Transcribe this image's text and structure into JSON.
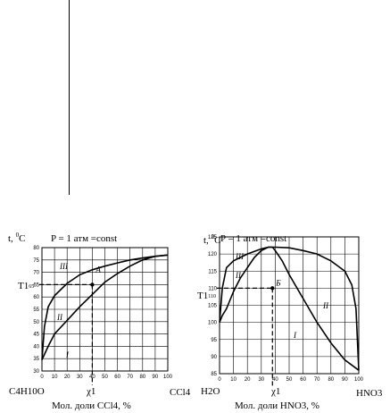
{
  "chart_data": [
    {
      "type": "line",
      "t_label": "t,",
      "t_unit": "C",
      "t_sup": "0",
      "pressure": "P = 1 атм =const",
      "xlim": [
        0,
        100
      ],
      "ylim": [
        30,
        80
      ],
      "xticks": [
        0,
        10,
        20,
        30,
        40,
        50,
        60,
        70,
        80,
        90,
        100
      ],
      "yticks": [
        30,
        35,
        40,
        45,
        50,
        55,
        60,
        65,
        70,
        75,
        80
      ],
      "left_component": "C4H10O",
      "right_component": "CCl4",
      "chi": "χ1",
      "axis_caption": "Мол. доли CCl4, %",
      "T_label": "T1",
      "T_value": "65",
      "point_label": "A",
      "point": [
        40,
        65
      ],
      "series": [
        {
          "curve": "liquid",
          "x": [
            0,
            5,
            10,
            20,
            30,
            40,
            50,
            60,
            70,
            80,
            90,
            100
          ],
          "y": [
            34.5,
            40,
            45,
            50.5,
            56,
            61,
            66,
            69.5,
            72.5,
            75,
            76.5,
            77
          ]
        },
        {
          "curve": "vapor",
          "x": [
            0,
            2,
            5,
            10,
            20,
            30,
            40,
            50,
            60,
            70,
            80,
            90,
            100
          ],
          "y": [
            34.5,
            48,
            56,
            60.5,
            65.5,
            69,
            71,
            72.5,
            73.8,
            75,
            75.8,
            76.5,
            77
          ]
        }
      ],
      "regions": [
        "III",
        "II",
        "I"
      ]
    },
    {
      "type": "line",
      "t_label": "t,",
      "t_unit": "C",
      "t_sup": "0",
      "pressure": "P = 1 атм =const",
      "xlim": [
        0,
        100
      ],
      "ylim": [
        85,
        125
      ],
      "xticks": [
        0,
        10,
        20,
        30,
        40,
        50,
        60,
        70,
        80,
        90,
        100
      ],
      "yticks": [
        85,
        90,
        95,
        100,
        105,
        110,
        115,
        120,
        125
      ],
      "left_component": "H2O",
      "right_component": "HNO3",
      "chi": "χ1",
      "axis_caption": "Мол. доли HNO3, %",
      "T_label": "T1",
      "T_value": "110",
      "point_label": "Б",
      "point": [
        38,
        110
      ],
      "series": [
        {
          "curve": "liquid",
          "x": [
            0,
            2,
            5,
            10,
            15,
            20,
            25,
            30,
            35,
            38,
            40,
            45,
            50,
            60,
            70,
            80,
            90,
            100
          ],
          "y": [
            100,
            102,
            104,
            109,
            113,
            116,
            119,
            121,
            122,
            122,
            121,
            118,
            114,
            107,
            100,
            94,
            89,
            86
          ]
        },
        {
          "curve": "vapor",
          "x": [
            0,
            2,
            5,
            10,
            20,
            30,
            35,
            38,
            40,
            50,
            60,
            70,
            80,
            90,
            95,
            98,
            100
          ],
          "y": [
            100,
            110,
            116,
            118,
            120,
            121.5,
            122,
            122,
            122,
            121.8,
            121,
            120,
            118,
            115,
            111,
            104,
            86
          ]
        }
      ],
      "regions": [
        "III",
        "II",
        "II",
        "I"
      ]
    }
  ]
}
